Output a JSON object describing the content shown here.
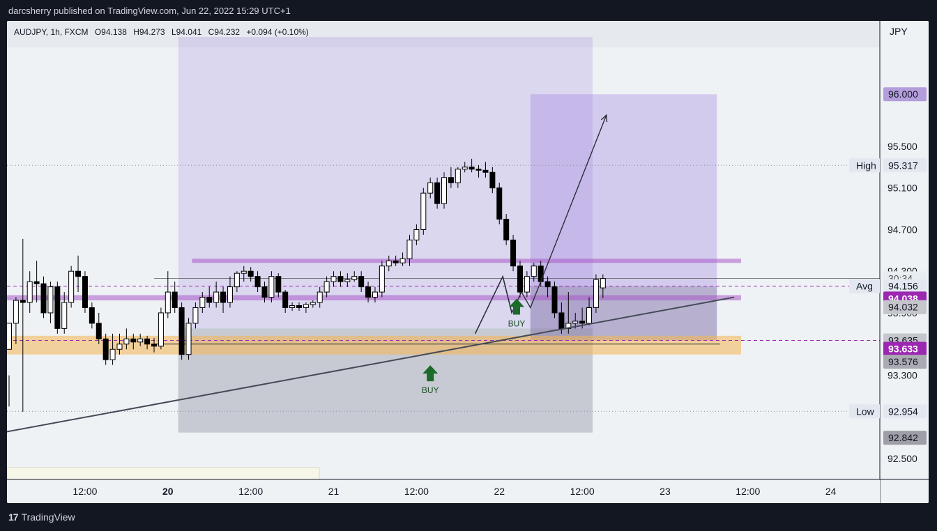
{
  "header": {
    "text": "darcsherry published on TradingView.com, Jun 22, 2022 15:29 UTC+1"
  },
  "footer": {
    "logo_text": "TradingView"
  },
  "legend": {
    "symbol": "AUDJPY, 1h, FXCM",
    "open": "O94.138",
    "high": "H94.273",
    "low": "L94.041",
    "close": "C94.232",
    "change": "+0.094 (+0.10%)"
  },
  "chart_data": {
    "type": "candlestick",
    "currency_label": "JPY",
    "ylim": [
      92.3,
      96.45
    ],
    "y_ticks": [
      "92.500",
      "93.300",
      "93.900",
      "94.300",
      "94.700",
      "95.100",
      "95.500",
      "96.000"
    ],
    "x_ticks": [
      {
        "label": "12:00",
        "t": 11,
        "bold": false
      },
      {
        "label": "20",
        "t": 23,
        "bold": true
      },
      {
        "label": "12:00",
        "t": 35,
        "bold": false
      },
      {
        "label": "21",
        "t": 47,
        "bold": false
      },
      {
        "label": "12:00",
        "t": 59,
        "bold": false
      },
      {
        "label": "22",
        "t": 71,
        "bold": false
      },
      {
        "label": "12:00",
        "t": 83,
        "bold": false
      },
      {
        "label": "23",
        "t": 95,
        "bold": false
      },
      {
        "label": "12:00",
        "t": 107,
        "bold": false
      },
      {
        "label": "24",
        "t": 119,
        "bold": false
      }
    ],
    "candles": [
      [
        93.55,
        93.8,
        93.3,
        93.0
      ],
      [
        93.8,
        94.02,
        94.05,
        93.6
      ],
      [
        94.02,
        94.0,
        94.61,
        92.95
      ],
      [
        94.0,
        94.2,
        94.3,
        93.9
      ],
      [
        94.2,
        94.18,
        94.4,
        94.0
      ],
      [
        94.18,
        93.9,
        94.25,
        93.85
      ],
      [
        93.9,
        94.15,
        94.2,
        93.8
      ],
      [
        94.15,
        93.75,
        94.2,
        93.7
      ],
      [
        93.75,
        94.0,
        94.1,
        93.7
      ],
      [
        94.0,
        94.3,
        94.35,
        93.95
      ],
      [
        94.3,
        94.25,
        94.45,
        94.1
      ],
      [
        94.25,
        93.95,
        94.3,
        93.9
      ],
      [
        93.95,
        93.8,
        94.0,
        93.75
      ],
      [
        93.8,
        93.65,
        93.9,
        93.6
      ],
      [
        93.65,
        93.45,
        93.7,
        93.4
      ],
      [
        93.45,
        93.55,
        93.7,
        93.4
      ],
      [
        93.55,
        93.6,
        93.7,
        93.5
      ],
      [
        93.6,
        93.65,
        93.75,
        93.55
      ],
      [
        93.65,
        93.62,
        93.7,
        93.55
      ],
      [
        93.62,
        93.65,
        93.7,
        93.58
      ],
      [
        93.65,
        93.6,
        93.68,
        93.55
      ],
      [
        93.6,
        93.58,
        93.66,
        93.52
      ],
      [
        93.58,
        93.9,
        93.95,
        93.55
      ],
      [
        93.9,
        94.1,
        94.3,
        93.85
      ],
      [
        94.1,
        93.95,
        94.2,
        93.9
      ],
      [
        93.95,
        93.5,
        94.0,
        93.45
      ],
      [
        93.5,
        93.8,
        93.85,
        93.45
      ],
      [
        93.8,
        93.95,
        94.0,
        93.75
      ],
      [
        93.95,
        94.05,
        94.1,
        93.9
      ],
      [
        94.05,
        94.0,
        94.15,
        93.95
      ],
      [
        94.0,
        94.1,
        94.2,
        93.95
      ],
      [
        94.1,
        94.0,
        94.15,
        93.9
      ],
      [
        94.0,
        94.15,
        94.25,
        93.95
      ],
      [
        94.15,
        94.28,
        94.3,
        94.1
      ],
      [
        94.28,
        94.3,
        94.35,
        94.2
      ],
      [
        94.3,
        94.25,
        94.34,
        94.2
      ],
      [
        94.25,
        94.15,
        94.3,
        94.1
      ],
      [
        94.15,
        94.05,
        94.2,
        94.0
      ],
      [
        94.05,
        94.25,
        94.3,
        94.0
      ],
      [
        94.25,
        94.1,
        94.28,
        94.05
      ],
      [
        94.1,
        93.95,
        94.12,
        93.9
      ],
      [
        93.95,
        93.97,
        94.0,
        93.92
      ],
      [
        93.97,
        93.95,
        94.0,
        93.92
      ],
      [
        93.95,
        93.98,
        94.0,
        93.9
      ],
      [
        93.98,
        94.0,
        94.02,
        93.95
      ],
      [
        94.0,
        94.1,
        94.15,
        93.95
      ],
      [
        94.1,
        94.2,
        94.25,
        94.05
      ],
      [
        94.2,
        94.25,
        94.3,
        94.15
      ],
      [
        94.25,
        94.2,
        94.3,
        94.15
      ],
      [
        94.2,
        94.22,
        94.28,
        94.15
      ],
      [
        94.22,
        94.25,
        94.3,
        94.2
      ],
      [
        94.25,
        94.15,
        94.3,
        94.1
      ],
      [
        94.15,
        94.05,
        94.2,
        94.0
      ],
      [
        94.05,
        94.1,
        94.15,
        94.0
      ],
      [
        94.1,
        94.35,
        94.4,
        94.05
      ],
      [
        94.35,
        94.4,
        94.45,
        94.3
      ],
      [
        94.4,
        94.38,
        94.45,
        94.35
      ],
      [
        94.38,
        94.42,
        94.48,
        94.35
      ],
      [
        94.42,
        94.6,
        94.65,
        94.35
      ],
      [
        94.6,
        94.7,
        94.75,
        94.55
      ],
      [
        94.7,
        95.05,
        95.1,
        94.65
      ],
      [
        95.05,
        95.15,
        95.2,
        95.0
      ],
      [
        95.15,
        94.95,
        95.2,
        94.9
      ],
      [
        94.95,
        95.2,
        95.25,
        94.9
      ],
      [
        95.2,
        95.15,
        95.3,
        95.1
      ],
      [
        95.15,
        95.28,
        95.3,
        95.1
      ],
      [
        95.28,
        95.3,
        95.35,
        95.25
      ],
      [
        95.3,
        95.28,
        95.38,
        95.25
      ],
      [
        95.28,
        95.27,
        95.32,
        95.2
      ],
      [
        95.27,
        95.25,
        95.35,
        95.2
      ],
      [
        95.25,
        95.1,
        95.3,
        95.05
      ],
      [
        95.1,
        94.8,
        95.15,
        94.75
      ],
      [
        94.8,
        94.6,
        94.85,
        94.55
      ],
      [
        94.6,
        94.35,
        94.65,
        94.3
      ],
      [
        94.35,
        94.1,
        94.4,
        94.05
      ],
      [
        94.1,
        94.25,
        94.3,
        94.05
      ],
      [
        94.25,
        94.35,
        94.38,
        94.2
      ],
      [
        94.35,
        94.2,
        94.4,
        94.15
      ],
      [
        94.2,
        94.15,
        94.25,
        94.05
      ],
      [
        94.15,
        93.9,
        94.2,
        93.85
      ],
      [
        93.9,
        93.75,
        94.0,
        93.7
      ],
      [
        93.75,
        93.8,
        94.1,
        93.7
      ],
      [
        93.8,
        93.82,
        93.9,
        93.75
      ],
      [
        93.82,
        93.8,
        93.95,
        93.75
      ],
      [
        93.8,
        93.95,
        94.05,
        93.78
      ],
      [
        93.95,
        94.22,
        94.27,
        93.9
      ],
      [
        94.14,
        94.23,
        94.27,
        94.04
      ]
    ],
    "zones": [
      {
        "name": "big-purple-box",
        "t0": 24.5,
        "t1": 84.5,
        "y0": 93.75,
        "y1": 96.55,
        "color": "rgba(155,120,220,0.22)"
      },
      {
        "name": "big-gray-box",
        "t0": 24.5,
        "t1": 84.5,
        "y0": 92.75,
        "y1": 93.75,
        "color": "rgba(110,110,130,0.30)"
      },
      {
        "name": "target-purple-box",
        "t0": 75.5,
        "t1": 102.5,
        "y0": 93.635,
        "y1": 96.0,
        "color": "rgba(155,120,220,0.32)"
      },
      {
        "name": "target-gray-box",
        "t0": 75.5,
        "t1": 102.5,
        "y0": 93.635,
        "y1": 94.156,
        "color": "rgba(110,110,130,0.28)"
      },
      {
        "name": "demand-zone",
        "t0": -1,
        "t1": 106,
        "y0": 93.5,
        "y1": 93.68,
        "color": "rgba(245,180,80,0.55)"
      },
      {
        "name": "resistance-band",
        "t0": 26.5,
        "t1": 106,
        "y0": 94.38,
        "y1": 94.42,
        "color": "rgba(170,90,200,0.55)"
      },
      {
        "name": "support-band",
        "t0": -1,
        "t1": 106,
        "y0": 94.02,
        "y1": 94.07,
        "color": "rgba(170,90,200,0.55)"
      }
    ],
    "price_labels": [
      {
        "text": "96.000",
        "y": 96.0,
        "bg": "#b39ddb",
        "fg": "#131722"
      },
      {
        "text": "95.317",
        "y": 95.317,
        "bg": "#e3e8f0",
        "fg": "#131722",
        "side": "High"
      },
      {
        "text": "30:34",
        "y": 94.232,
        "bg": "#e8edf1",
        "fg": "#555555"
      },
      {
        "text": "94.156",
        "y": 94.156,
        "bg": "#e3e8f0",
        "fg": "#131722",
        "side": "Avg"
      },
      {
        "text": "94.038",
        "y": 94.038,
        "bg": "#9c27b0",
        "fg": "#ffffff"
      },
      {
        "text": "94.032",
        "y": 93.955,
        "bg": "#c5c5cc",
        "fg": "#131722"
      },
      {
        "text": "93.635",
        "y": 93.635,
        "bg": "#c5c5cc",
        "fg": "#131722"
      },
      {
        "text": "93.633",
        "y": 93.555,
        "bg": "#9c27b0",
        "fg": "#ffffff"
      },
      {
        "text": "93.576",
        "y": 93.43,
        "bg": "#aaaab2",
        "fg": "#131722"
      },
      {
        "text": "92.954",
        "y": 92.954,
        "bg": "#e3e8f0",
        "fg": "#131722",
        "side": "Low"
      },
      {
        "text": "92.842",
        "y": 92.7,
        "bg": "#9e9ea6",
        "fg": "#131722"
      }
    ],
    "annotations": [
      {
        "type": "buy",
        "label": "BUY",
        "t": 61,
        "y": 93.33
      },
      {
        "type": "buy",
        "label": "BUY",
        "t": 73.5,
        "y": 93.97
      }
    ],
    "trendline": {
      "t0": -1,
      "y0": 92.75,
      "t1": 105,
      "y1": 94.05
    },
    "path": [
      [
        67.5,
        93.7
      ],
      [
        71.5,
        94.25
      ],
      [
        72.8,
        93.9
      ],
      [
        74.2,
        94.1
      ],
      [
        75.5,
        93.95
      ],
      [
        86.5,
        95.8
      ]
    ],
    "wedge": [
      [
        67.5,
        93.7
      ],
      [
        71.5,
        94.25
      ],
      [
        72.8,
        93.9
      ]
    ]
  }
}
